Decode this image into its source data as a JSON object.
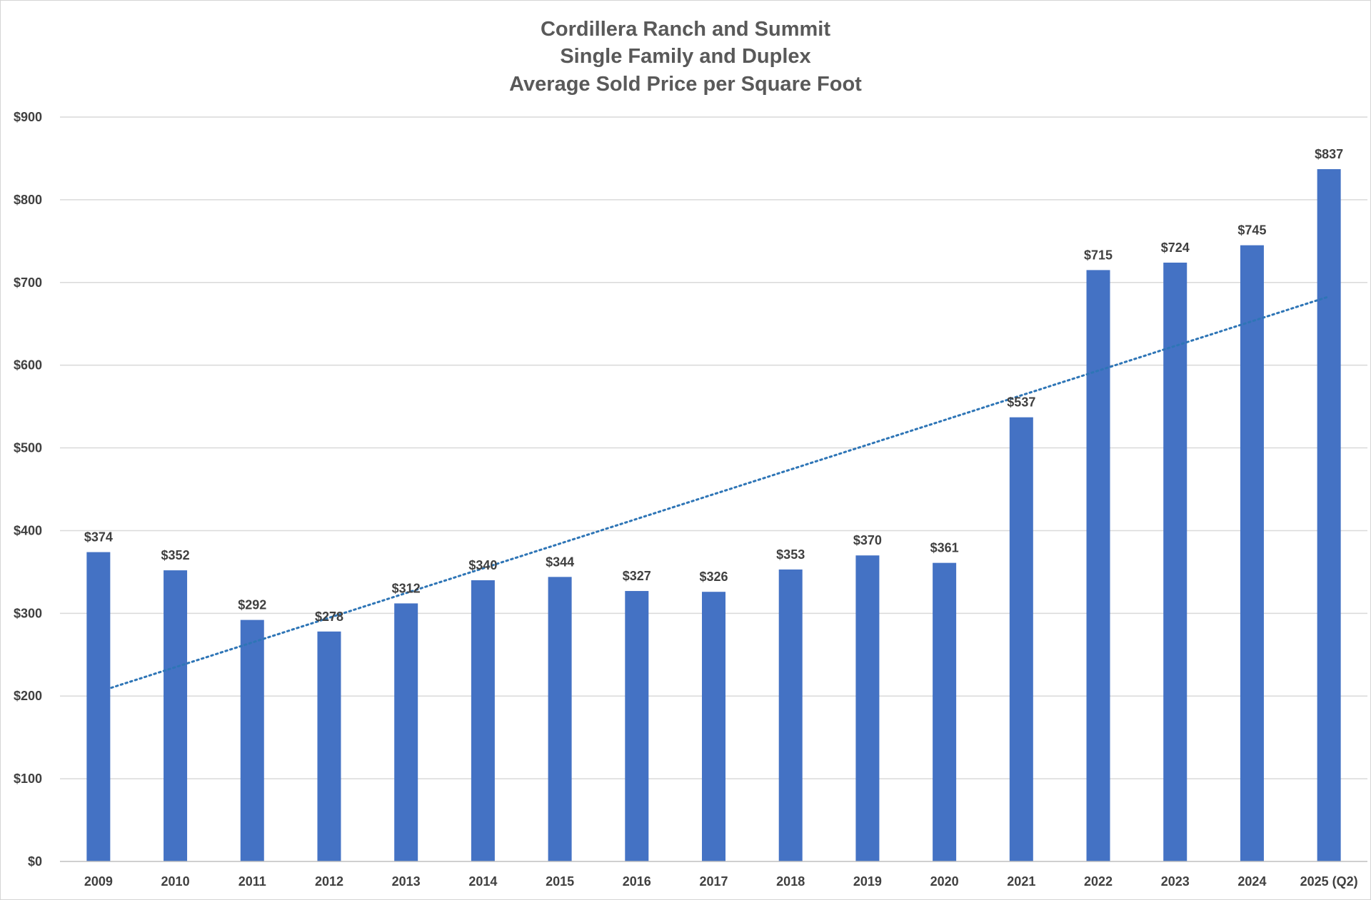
{
  "chart_data": {
    "type": "bar",
    "title": [
      "Cordillera Ranch and Summit",
      "Single Family and Duplex",
      "Average Sold Price per Square Foot"
    ],
    "xlabel": "",
    "ylabel": "",
    "ylim": [
      0,
      900
    ],
    "y_tick_values": [
      0,
      100,
      200,
      300,
      400,
      500,
      600,
      700,
      800,
      900
    ],
    "y_tick_labels": [
      "$0",
      "$100",
      "$200",
      "$300",
      "$400",
      "$500",
      "$600",
      "$700",
      "$800",
      "$900"
    ],
    "categories": [
      "2009",
      "2010",
      "2011",
      "2012",
      "2013",
      "2014",
      "2015",
      "2016",
      "2017",
      "2018",
      "2019",
      "2020",
      "2021",
      "2022",
      "2023",
      "2024",
      "2025 (Q2)"
    ],
    "series": [
      {
        "values": [
          374,
          352,
          292,
          278,
          312,
          340,
          344,
          327,
          326,
          353,
          370,
          361,
          537,
          715,
          724,
          745,
          837
        ],
        "data_labels": [
          "$374",
          "$352",
          "$292",
          "$278",
          "$312",
          "$340",
          "$344",
          "$327",
          "$326",
          "$353",
          "$370",
          "$361",
          "$537",
          "$715",
          "$724",
          "$745",
          "$837"
        ]
      }
    ],
    "trendline": {
      "type": "linear",
      "style": "dotted",
      "start": {
        "category": "2009",
        "value": 210
      },
      "end": {
        "category": "2025 (Q2)",
        "value": 683
      }
    },
    "grid": true,
    "legend": "none",
    "colors": {
      "bar": "#4472C4",
      "trendline": "#2E75B6",
      "gridline": "#d9d9d9",
      "axis": "#bfbfbf",
      "title": "#595959",
      "labels": "#404040"
    }
  }
}
